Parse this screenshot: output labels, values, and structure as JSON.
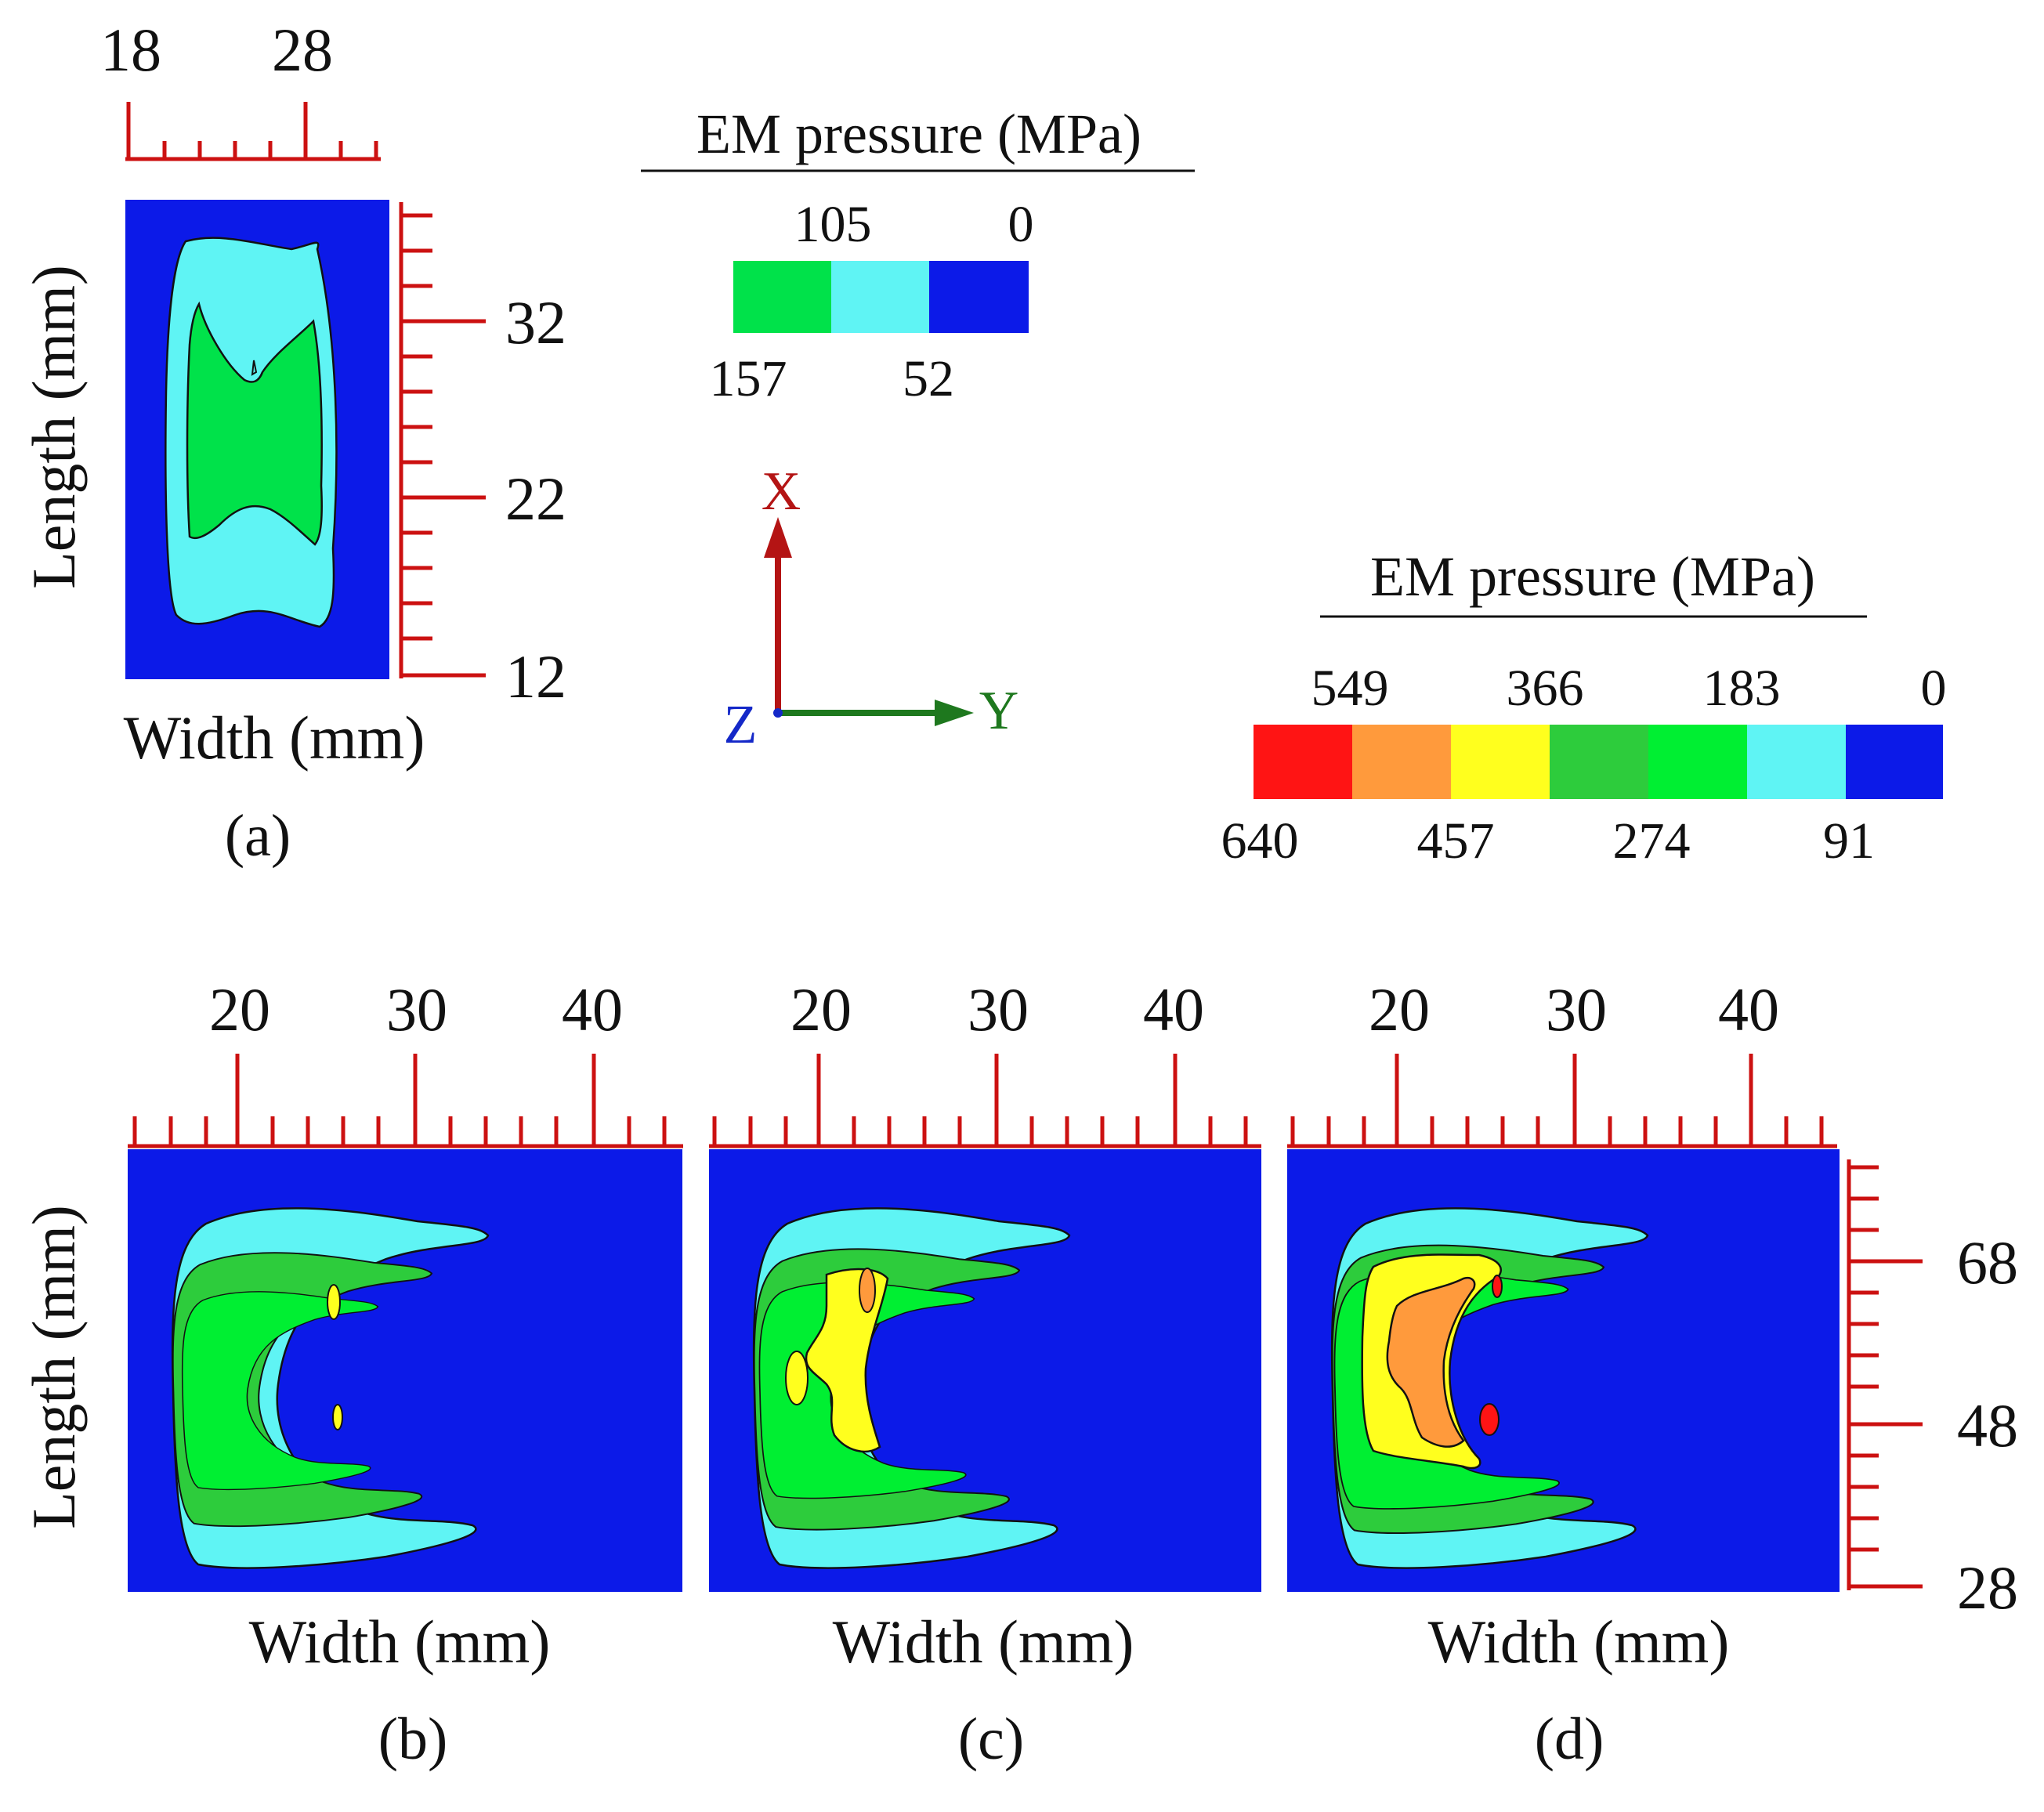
{
  "figure": {
    "legend_small": {
      "title": "EM pressure (MPa)",
      "top_values": [
        "105",
        "0"
      ],
      "bottom_values": [
        "157",
        "52"
      ],
      "colors": [
        "#00e24a",
        "#5ff4f4",
        "#0c1ae8"
      ]
    },
    "legend_large": {
      "title": "EM pressure (MPa)",
      "top_values": [
        "549",
        "366",
        "183",
        "0"
      ],
      "bottom_values": [
        "640",
        "457",
        "274",
        "91"
      ],
      "colors": [
        "#ff1414",
        "#ff9a3c",
        "#ffff1e",
        "#2dcc3c",
        "#00ef32",
        "#5ff4f4",
        "#0c1ae8"
      ]
    },
    "triad": {
      "x_label": "X",
      "y_label": "Y",
      "z_label": "Z",
      "x_color": "#b41414",
      "y_color": "#1e781e",
      "z_color": "#1428c8"
    }
  },
  "chart_data": [
    {
      "type": "heatmap",
      "panel": "(a)",
      "xlabel": "Width (mm)",
      "ylabel": "Length (mm)",
      "x_ticks": [
        "18",
        "28"
      ],
      "y_ticks": [
        "32",
        "22",
        "12"
      ],
      "levels": [
        0,
        52,
        105,
        157
      ],
      "max_level_reached": 105
    },
    {
      "type": "heatmap",
      "panel": "(b)",
      "xlabel": "Width (mm)",
      "ylabel": "Length (mm)",
      "x_ticks": [
        "20",
        "30",
        "40"
      ],
      "levels": [
        0,
        91,
        183,
        274,
        366,
        457,
        549,
        640
      ],
      "max_level_reached": 366
    },
    {
      "type": "heatmap",
      "panel": "(c)",
      "xlabel": "Width (mm)",
      "x_ticks": [
        "20",
        "30",
        "40"
      ],
      "levels": [
        0,
        91,
        183,
        274,
        366,
        457,
        549,
        640
      ],
      "max_level_reached": 457
    },
    {
      "type": "heatmap",
      "panel": "(d)",
      "xlabel": "Width (mm)",
      "x_ticks": [
        "20",
        "30",
        "40"
      ],
      "y_ticks": [
        "68",
        "48",
        "28"
      ],
      "levels": [
        0,
        91,
        183,
        274,
        366,
        457,
        549,
        640
      ],
      "max_level_reached": 640
    }
  ]
}
